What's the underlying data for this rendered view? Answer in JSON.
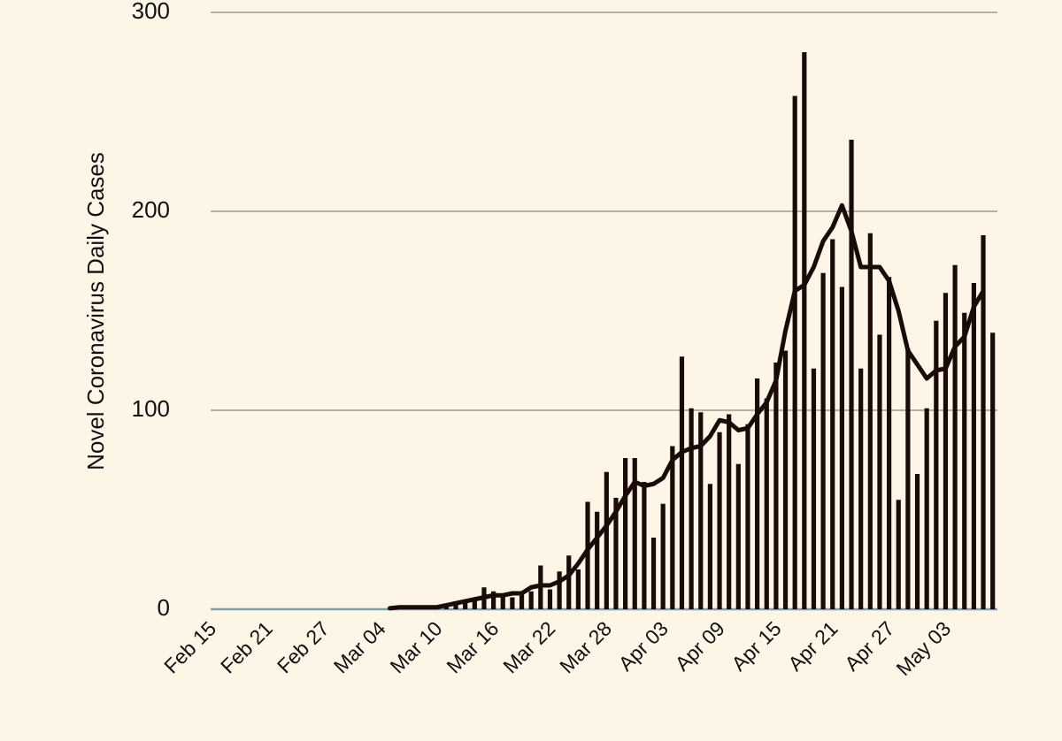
{
  "chart_data": {
    "type": "combo",
    "ylabel": "Novel Coronavirus Daily Cases",
    "categories": [
      "Feb 15",
      null,
      null,
      null,
      null,
      null,
      "Feb 21",
      null,
      null,
      null,
      null,
      null,
      "Feb 27",
      null,
      null,
      null,
      null,
      null,
      "Mar 04",
      null,
      null,
      null,
      null,
      null,
      "Mar 10",
      null,
      null,
      null,
      null,
      null,
      "Mar 16",
      null,
      null,
      null,
      null,
      null,
      "Mar 22",
      null,
      null,
      null,
      null,
      null,
      "Mar 28",
      null,
      null,
      null,
      null,
      null,
      "Apr 03",
      null,
      null,
      null,
      null,
      null,
      "Apr 09",
      null,
      null,
      null,
      null,
      null,
      "Apr 15",
      null,
      null,
      null,
      null,
      null,
      "Apr 21",
      null,
      null,
      null,
      null,
      null,
      "Apr 27",
      null,
      null,
      null,
      null,
      null,
      "May 03",
      null,
      null,
      null,
      null,
      null
    ],
    "series": [
      {
        "type": "bar",
        "color": "#1a0a08",
        "values": [
          0,
          0,
          0,
          0,
          0,
          0,
          0,
          0,
          0,
          0,
          0,
          0,
          0,
          0,
          0,
          0,
          0,
          0,
          0,
          1,
          1,
          2,
          1,
          1,
          2,
          1,
          3,
          4,
          5,
          11,
          9,
          8,
          6,
          8,
          9,
          22,
          10,
          19,
          27,
          20,
          54,
          49,
          69,
          56,
          76,
          76,
          64,
          36,
          53,
          82,
          127,
          101,
          99,
          63,
          89,
          98,
          73,
          93,
          116,
          106,
          124,
          130,
          258,
          280,
          121,
          169,
          186,
          162,
          236,
          121,
          189,
          138,
          167,
          55,
          131,
          68,
          101,
          145,
          159,
          173,
          149,
          164,
          188,
          139
        ]
      },
      {
        "type": "line",
        "color": "#1a0a08",
        "values": [
          null,
          null,
          null,
          null,
          null,
          null,
          null,
          null,
          null,
          null,
          null,
          null,
          null,
          null,
          null,
          null,
          null,
          null,
          null,
          0.5,
          1,
          1,
          1,
          1,
          1,
          2,
          3,
          4,
          5,
          6,
          7,
          7,
          8,
          8,
          11,
          12,
          12,
          14,
          17,
          23,
          30,
          36,
          42,
          49,
          57,
          64,
          62,
          63,
          66,
          75,
          79,
          81,
          82,
          87,
          95,
          94,
          90,
          91,
          98,
          104,
          115,
          140,
          160,
          163,
          172,
          185,
          192,
          203,
          190,
          172,
          172,
          172,
          165,
          150,
          130,
          123,
          116,
          120,
          121,
          132,
          137,
          152,
          160,
          null
        ]
      }
    ],
    "ylim": [
      0,
      300
    ],
    "yticks": [
      0,
      100,
      200,
      300
    ],
    "grid": true
  }
}
